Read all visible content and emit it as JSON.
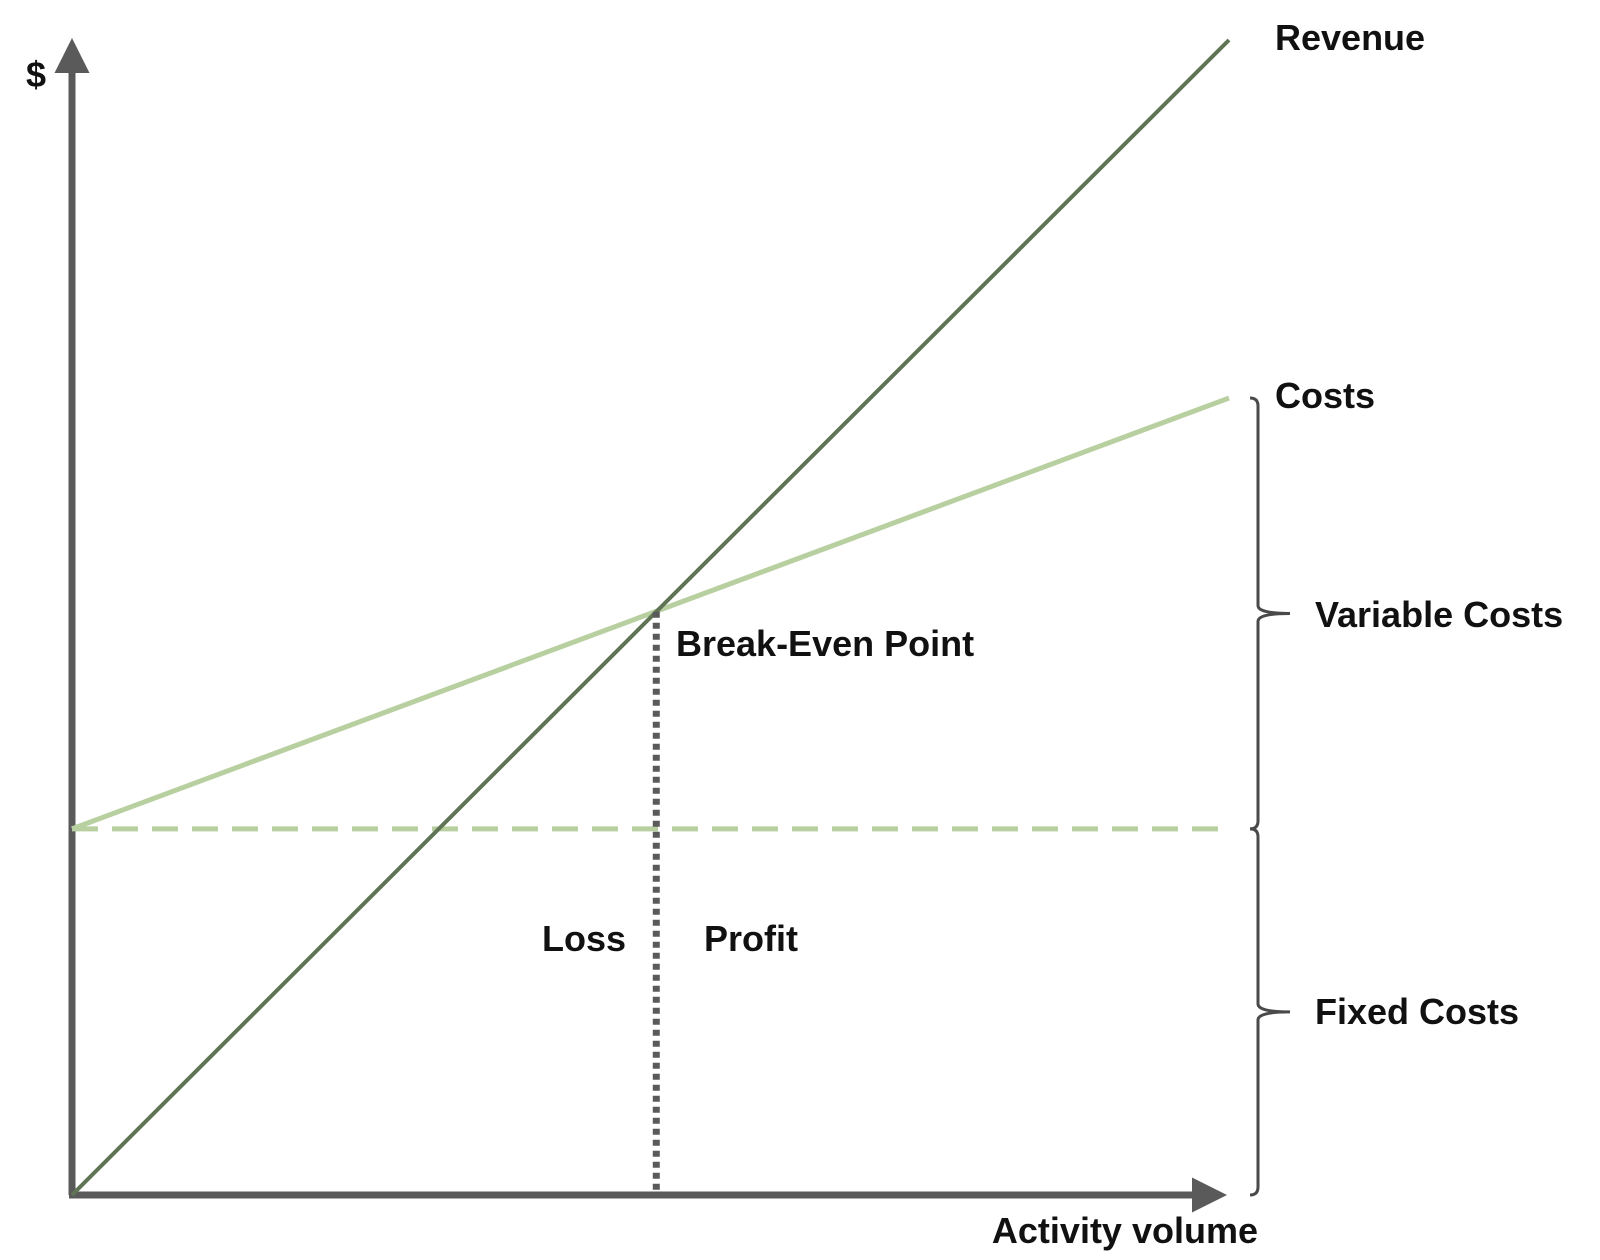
{
  "chart_data": {
    "type": "line",
    "ylabel": "$",
    "xlabel": "Activity volume",
    "xlim": [
      0,
      1
    ],
    "ylim": [
      0,
      1
    ],
    "grid": false,
    "series": [
      {
        "name": "Revenue",
        "color": "#5f7454",
        "style": "solid",
        "points": [
          [
            0,
            0
          ],
          [
            1,
            1
          ]
        ]
      },
      {
        "name": "Costs",
        "color": "#b8cfa0",
        "style": "solid",
        "points": [
          [
            0,
            0.317
          ],
          [
            1,
            0.69
          ]
        ]
      },
      {
        "color": "#b8cfa0",
        "style": "dashed",
        "points": [
          [
            0,
            0.317
          ],
          [
            1,
            0.317
          ]
        ]
      }
    ],
    "break_even": {
      "label": "Break-Even Point",
      "x": 0.505,
      "y": 0.505
    },
    "regions": {
      "loss": "Loss",
      "profit": "Profit"
    },
    "brackets": [
      {
        "label": "Variable Costs",
        "from": 0.317,
        "to": 0.69
      },
      {
        "label": "Fixed Costs",
        "from": 0,
        "to": 0.317
      }
    ],
    "colors": {
      "axis": "#5a5a5a",
      "bracket": "#4a4a4a",
      "break_even_line": "#5a5a5a"
    }
  }
}
